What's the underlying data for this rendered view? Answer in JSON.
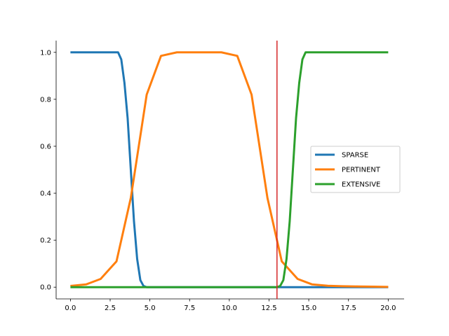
{
  "chart_data": {
    "type": "line",
    "title": "",
    "xlabel": "",
    "ylabel": "",
    "xlim": [
      -0.9,
      21.0
    ],
    "ylim": [
      -0.05,
      1.05
    ],
    "x_ticks": [
      0.0,
      2.5,
      5.0,
      7.5,
      10.0,
      12.5,
      15.0,
      17.5,
      20.0
    ],
    "x_tick_labels": [
      "0.0",
      "2.5",
      "5.0",
      "7.5",
      "10.0",
      "12.5",
      "15.0",
      "17.5",
      "20.0"
    ],
    "y_ticks": [
      0.0,
      0.2,
      0.4,
      0.6,
      0.8,
      1.0
    ],
    "y_tick_labels": [
      "0.0",
      "0.2",
      "0.4",
      "0.6",
      "0.8",
      "1.0"
    ],
    "grid": false,
    "legend": "center-right",
    "vline": {
      "x": 13.0,
      "color": "#d62728"
    },
    "series": [
      {
        "name": "SPARSE",
        "color": "#1f77b4",
        "x": [
          0,
          0.5,
          1,
          1.5,
          2,
          2.5,
          3.0,
          3.2,
          3.4,
          3.6,
          3.8,
          4.0,
          4.2,
          4.4,
          4.6,
          4.8,
          5.0,
          6,
          8,
          10,
          12,
          14,
          16,
          18,
          20
        ],
        "y": [
          1.0,
          1.0,
          1.0,
          1.0,
          1.0,
          1.0,
          1.0,
          0.97,
          0.87,
          0.72,
          0.5,
          0.28,
          0.12,
          0.03,
          0.005,
          0.0,
          0.0,
          0.0,
          0.0,
          0.0,
          0.0,
          0.0,
          0.0,
          0.0,
          0.0
        ]
      },
      {
        "name": "PERTINENT",
        "color": "#ff7f0e",
        "x": [
          0.0,
          1.0,
          1.9,
          2.9,
          3.8,
          4.8,
          5.7,
          6.7,
          7.6,
          8.6,
          9.5,
          10.5,
          11.4,
          12.4,
          13.3,
          14.3,
          15.2,
          16.2,
          17.1,
          18.1,
          19.0,
          20.0
        ],
        "y": [
          0.005,
          0.012,
          0.035,
          0.11,
          0.38,
          0.82,
          0.985,
          1.0,
          1.0,
          1.0,
          1.0,
          0.985,
          0.82,
          0.38,
          0.11,
          0.035,
          0.012,
          0.006,
          0.004,
          0.003,
          0.002,
          0.001
        ]
      },
      {
        "name": "EXTENSIVE",
        "color": "#2ca02c",
        "x": [
          0,
          2,
          4,
          6,
          8,
          10,
          12,
          13.0,
          13.2,
          13.4,
          13.6,
          13.8,
          14.0,
          14.2,
          14.4,
          14.6,
          14.8,
          15.0,
          16,
          18,
          20
        ],
        "y": [
          0.0,
          0.0,
          0.0,
          0.0,
          0.0,
          0.0,
          0.0,
          0.0,
          0.005,
          0.03,
          0.12,
          0.28,
          0.5,
          0.72,
          0.87,
          0.97,
          1.0,
          1.0,
          1.0,
          1.0,
          1.0
        ]
      }
    ]
  }
}
